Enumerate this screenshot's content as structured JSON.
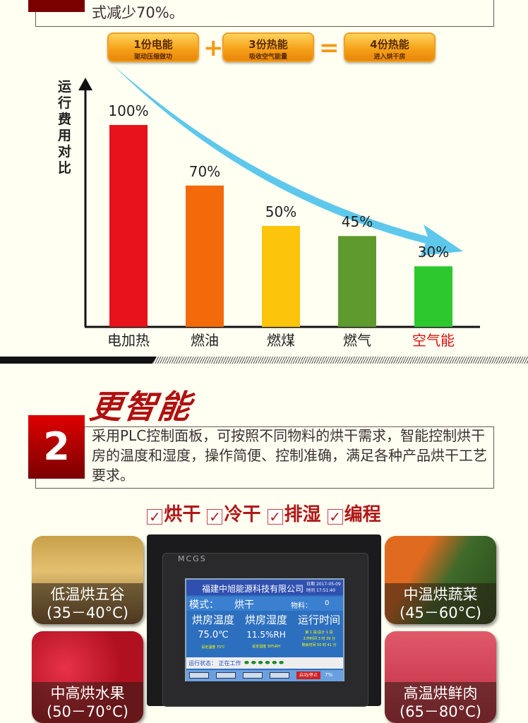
{
  "intro": {
    "text_tail": "式减少70%。"
  },
  "formula": [
    {
      "title": "1份电能",
      "sub": "驱动压缩做功"
    },
    {
      "op": "+"
    },
    {
      "title": "3份热能",
      "sub": "吸收空气能量"
    },
    {
      "op": "="
    },
    {
      "title": "4份热能",
      "sub": "进入烘干房"
    }
  ],
  "chart_data": {
    "type": "bar",
    "ylabel": "运行费用对比",
    "categories": [
      "电加热",
      "燃油",
      "燃煤",
      "燃气",
      "空气能"
    ],
    "values": [
      100,
      70,
      50,
      45,
      30
    ],
    "value_labels": [
      "100%",
      "70%",
      "50%",
      "45%",
      "30%"
    ],
    "colors": [
      "#e8121a",
      "#f26a0a",
      "#fcc40a",
      "#5e9a2e",
      "#2dc82d"
    ],
    "highlight_category": "空气能",
    "highlight_color": "#e01010",
    "ylim": [
      0,
      100
    ],
    "grid": false,
    "arrow_color": "#5ec8ec"
  },
  "section2": {
    "heading": "更智能",
    "number": "2",
    "description": "采用PLC控制面板，可按照不同物料的烘干需求，智能控制烘干房的温度和湿度，操作简便、控制准确，满足各种产品烘干工艺要求。",
    "features": [
      "烘干",
      "冷干",
      "排湿",
      "编程"
    ]
  },
  "photos": [
    {
      "label": "低温烘五谷",
      "range": "(35－40°C)",
      "bg": "linear-gradient(#c9a04a,#e3c070 40%,#7a5a30)"
    },
    {
      "label": "中高烘水果",
      "range": "(50－70°C)",
      "bg": "radial-gradient(circle at 30% 40%,#e8324a,#b01020 60%),#c02030"
    },
    {
      "label": "中温烘蔬菜",
      "range": "(45－60°C)",
      "bg": "linear-gradient(120deg,#e06a20 30%,#3e6a2a 55%,#2a4a1a)"
    },
    {
      "label": "高温烘鲜肉",
      "range": "(65－80°C)",
      "bg": "linear-gradient(#e05a6a,#c02a40)"
    }
  ],
  "hmi": {
    "brand": "MCGS",
    "company": "福建中旭能源科技有限公司",
    "date_label": "日期",
    "date": "2017-05-09",
    "time_label": "时间",
    "time": "17:51:40",
    "mode_label": "模式：",
    "mode": "烘干",
    "material_label": "物料：",
    "material": "0",
    "temp_title": "烘房温度",
    "temp": "75.0℃",
    "temp_set": "设定温度  75℃",
    "hum_title": "烘房湿度",
    "hum": "11.5%RH",
    "hum_set": "设定湿度  30%RH",
    "run_title": "运行时间",
    "run_lines": [
      "第 1 段/总计 1 段",
      "工作时间  3  时 39 分",
      "剩余时间 50  时 41 分"
    ],
    "status_label": "运行状态：",
    "status": "正在工作",
    "start_stop": "启动/停止",
    "percent": "7%"
  }
}
